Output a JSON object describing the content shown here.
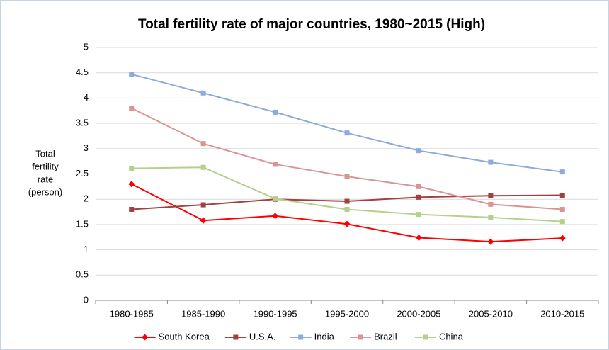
{
  "chart_data": {
    "type": "line",
    "title": "Total fertility rate of major countries, 1980~2015 (High)",
    "y_label": [
      "Total",
      "fertility",
      "rate",
      "(person)"
    ],
    "categories": [
      "1980-1985",
      "1985-1990",
      "1990-1995",
      "1995-2000",
      "2000-2005",
      "2005-2010",
      "2010-2015"
    ],
    "series": [
      {
        "name": "South Korea",
        "color": "#ff0000",
        "marker": "diamond",
        "values": [
          2.3,
          1.58,
          1.67,
          1.51,
          1.24,
          1.16,
          1.23
        ]
      },
      {
        "name": "U.S.A.",
        "color": "#a0403f",
        "marker": "square",
        "values": [
          1.8,
          1.89,
          2.0,
          1.96,
          2.04,
          2.07,
          2.08
        ]
      },
      {
        "name": "India",
        "color": "#8eaad8",
        "marker": "square",
        "values": [
          4.47,
          4.1,
          3.72,
          3.31,
          2.96,
          2.73,
          2.54
        ]
      },
      {
        "name": "Brazil",
        "color": "#d99594",
        "marker": "square",
        "values": [
          3.8,
          3.1,
          2.69,
          2.45,
          2.25,
          1.9,
          1.8
        ]
      },
      {
        "name": "China",
        "color": "#b3d18a",
        "marker": "square",
        "values": [
          2.61,
          2.63,
          2.01,
          1.8,
          1.7,
          1.64,
          1.56
        ]
      }
    ],
    "ylim": [
      0,
      5
    ],
    "yticks": [
      0,
      0.5,
      1,
      1.5,
      2,
      2.5,
      3,
      3.5,
      4,
      4.5,
      5
    ],
    "grid": true,
    "legend": "bottom"
  }
}
